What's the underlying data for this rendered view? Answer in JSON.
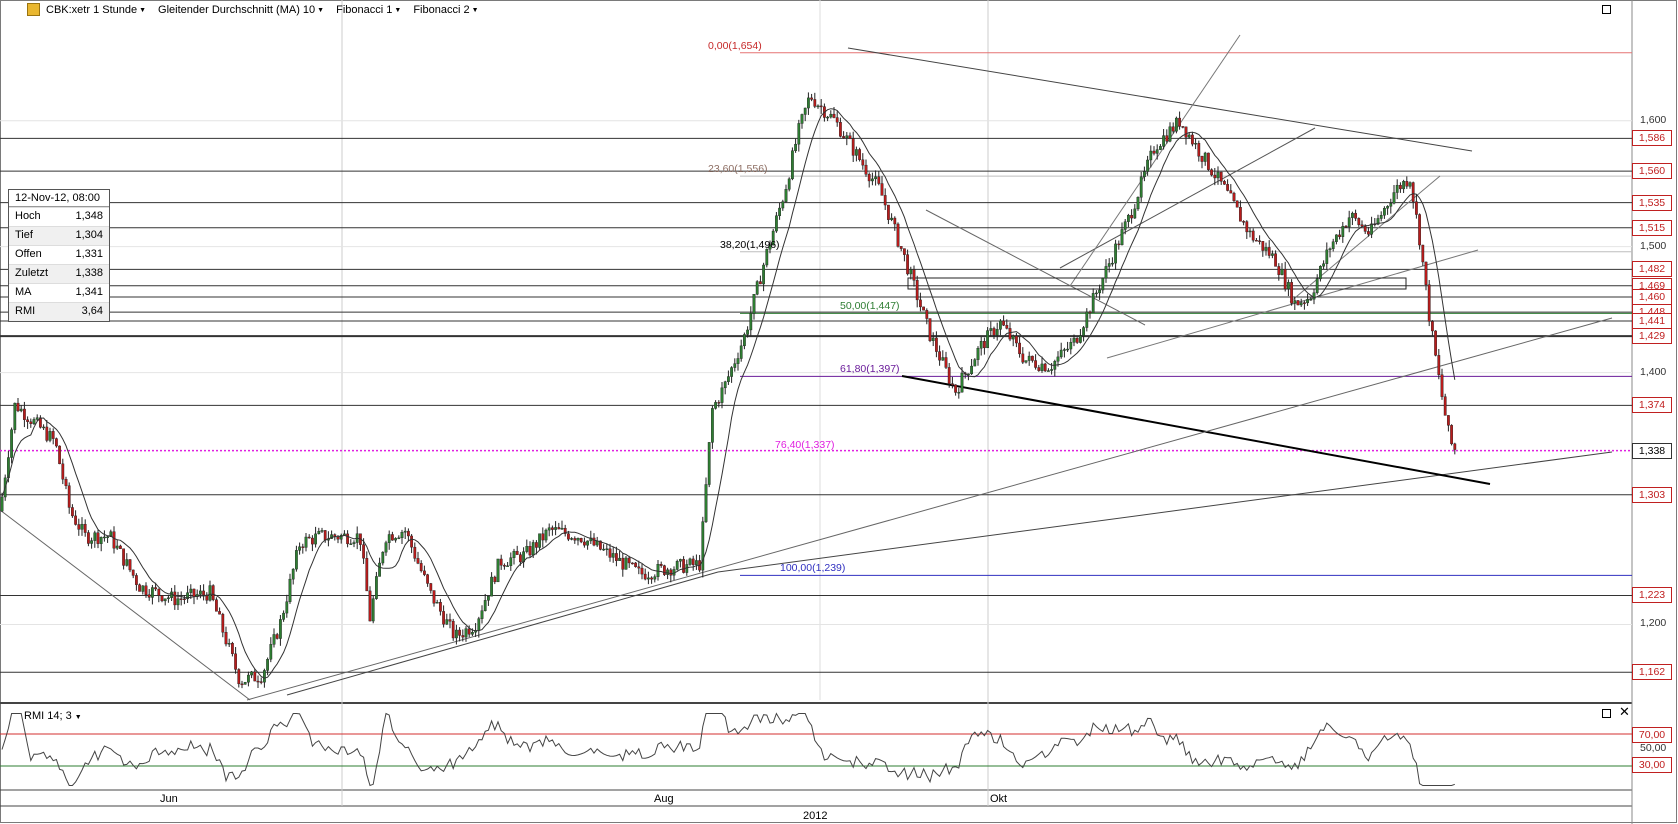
{
  "toolbar": {
    "instrument": "CBK:xetr 1 Stunde",
    "indicator_ma": "Gleitender Durchschnitt (MA) 10",
    "fib1": "Fibonacci 1",
    "fib2": "Fibonacci 2"
  },
  "info": {
    "date": "12-Nov-12, 08:00",
    "rows": [
      {
        "label": "Hoch",
        "value": "1,348"
      },
      {
        "label": "Tief",
        "value": "1,304"
      },
      {
        "label": "Offen",
        "value": "1,331"
      },
      {
        "label": "Zuletzt",
        "value": "1,338"
      },
      {
        "label": "MA",
        "value": "1,341"
      },
      {
        "label": "RMI",
        "value": "3,64"
      }
    ]
  },
  "rmi_panel": {
    "label": "RMI 14; 3"
  },
  "x_axis": {
    "months": [
      "Jun",
      "Aug",
      "Okt"
    ],
    "year": "2012"
  },
  "colors": {
    "up": "#2e7d32",
    "down": "#b71c1c",
    "fib_red": "#e57373",
    "magenta": "#e020e0",
    "blue": "#3030c0",
    "green": "#2e7d32",
    "purple": "#6a1b9a",
    "rmi_red": "#d32f2f",
    "rmi_green": "#2e7d32"
  },
  "chart_data": {
    "type": "candlestick",
    "title": "CBK:xetr 1 Stunde",
    "y_ticks": [
      "1,600",
      "1,500",
      "1,400",
      "1,200"
    ],
    "ylim": [
      1.14,
      1.68
    ],
    "price_levels": [
      "1,586",
      "1,560",
      "1,535",
      "1,515",
      "1,482",
      "1,469",
      "1,460",
      "1,448",
      "1,441",
      "1,429",
      "1,374",
      "1,303",
      "1,223",
      "1,162"
    ],
    "current_price": "1,338",
    "fibonacci": [
      {
        "label": "0,00(1,654)",
        "value": 1.654
      },
      {
        "label": "23,60(1,556)",
        "value": 1.556
      },
      {
        "label": "38,20(1,496)",
        "value": 1.496
      },
      {
        "label": "50,00(1,447)",
        "value": 1.447
      },
      {
        "label": "61,80(1,397)",
        "value": 1.397
      },
      {
        "label": "76,40(1,337)",
        "value": 1.337
      },
      {
        "label": "100,00(1,239)",
        "value": 1.239
      }
    ],
    "close_path": [
      [
        0,
        1.29
      ],
      [
        15,
        1.375
      ],
      [
        35,
        1.36
      ],
      [
        55,
        1.345
      ],
      [
        70,
        1.29
      ],
      [
        85,
        1.27
      ],
      [
        110,
        1.27
      ],
      [
        140,
        1.23
      ],
      [
        175,
        1.22
      ],
      [
        210,
        1.225
      ],
      [
        240,
        1.155
      ],
      [
        262,
        1.16
      ],
      [
        280,
        1.2
      ],
      [
        300,
        1.265
      ],
      [
        320,
        1.27
      ],
      [
        360,
        1.27
      ],
      [
        370,
        1.205
      ],
      [
        385,
        1.27
      ],
      [
        405,
        1.275
      ],
      [
        430,
        1.225
      ],
      [
        455,
        1.19
      ],
      [
        475,
        1.2
      ],
      [
        500,
        1.25
      ],
      [
        525,
        1.255
      ],
      [
        550,
        1.275
      ],
      [
        580,
        1.27
      ],
      [
        610,
        1.255
      ],
      [
        640,
        1.24
      ],
      [
        670,
        1.245
      ],
      [
        700,
        1.248
      ],
      [
        712,
        1.37
      ],
      [
        725,
        1.39
      ],
      [
        745,
        1.43
      ],
      [
        765,
        1.49
      ],
      [
        785,
        1.545
      ],
      [
        798,
        1.59
      ],
      [
        810,
        1.62
      ],
      [
        835,
        1.6
      ],
      [
        855,
        1.575
      ],
      [
        880,
        1.545
      ],
      [
        905,
        1.49
      ],
      [
        930,
        1.43
      ],
      [
        955,
        1.385
      ],
      [
        980,
        1.42
      ],
      [
        1000,
        1.44
      ],
      [
        1025,
        1.41
      ],
      [
        1050,
        1.405
      ],
      [
        1075,
        1.425
      ],
      [
        1100,
        1.47
      ],
      [
        1130,
        1.525
      ],
      [
        1155,
        1.58
      ],
      [
        1180,
        1.6
      ],
      [
        1200,
        1.575
      ],
      [
        1225,
        1.545
      ],
      [
        1250,
        1.51
      ],
      [
        1275,
        1.49
      ],
      [
        1295,
        1.455
      ],
      [
        1310,
        1.46
      ],
      [
        1330,
        1.5
      ],
      [
        1350,
        1.525
      ],
      [
        1370,
        1.51
      ],
      [
        1395,
        1.545
      ],
      [
        1410,
        1.555
      ],
      [
        1420,
        1.505
      ],
      [
        1430,
        1.44
      ],
      [
        1440,
        1.39
      ],
      [
        1450,
        1.345
      ],
      [
        1458,
        1.335
      ]
    ],
    "rmi": {
      "ylim": [
        0,
        100
      ],
      "levels": [
        "70,00",
        "50,00",
        "30,00"
      ],
      "last": 3.64
    }
  }
}
